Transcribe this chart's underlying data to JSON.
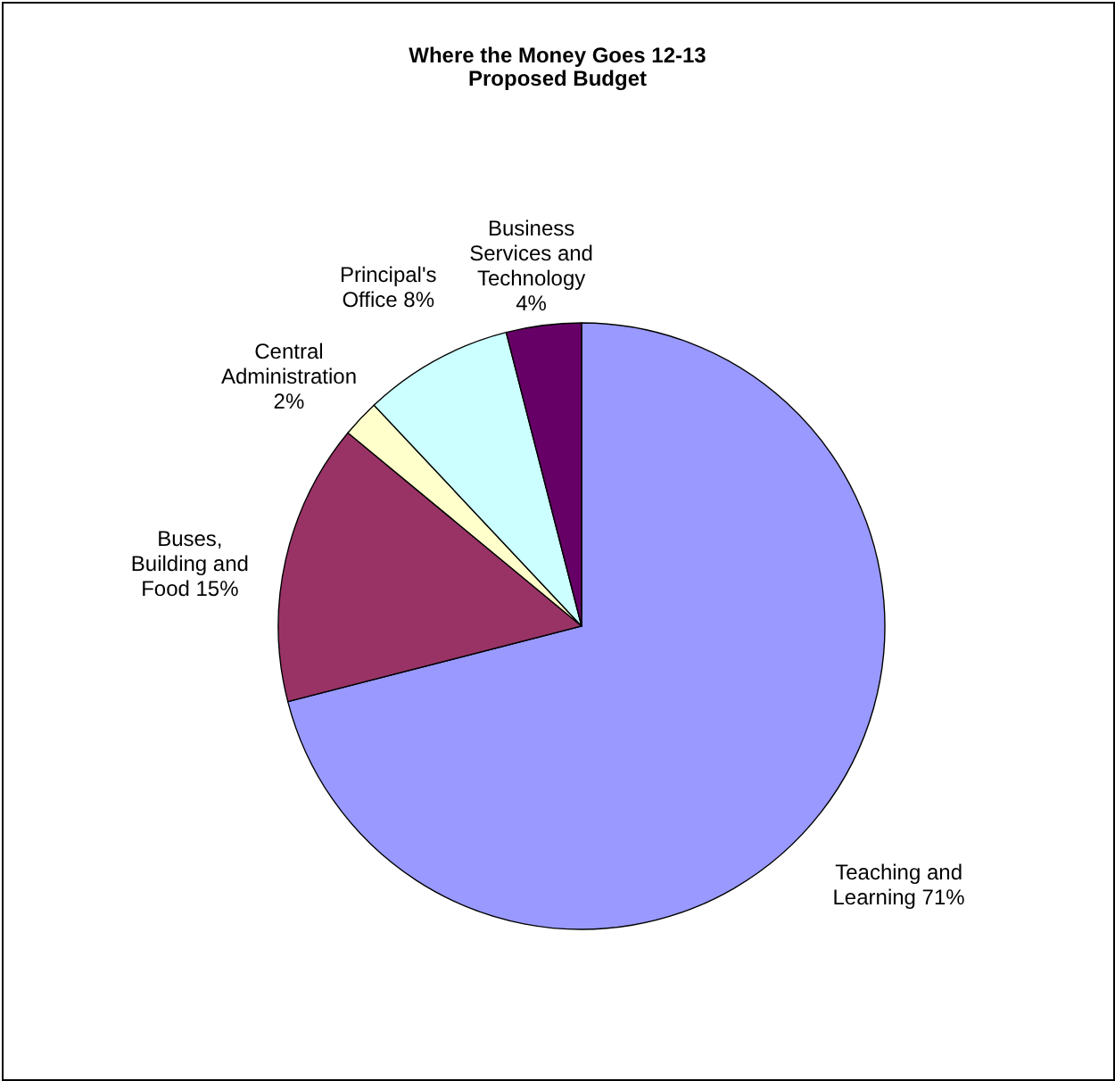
{
  "chart_data": {
    "type": "pie",
    "title": "Where the Money Goes 12-13",
    "subtitle": "Proposed Budget",
    "categories": [
      "Teaching and Learning",
      "Buses, Building and Food",
      "Central Administration",
      "Principal's Office",
      "Business Services and Technology"
    ],
    "values": [
      71,
      15,
      2,
      8,
      4
    ],
    "value_labels": [
      "71%",
      "15%",
      "2%",
      "8%",
      "4%"
    ],
    "colors": [
      "#9999ff",
      "#993366",
      "#ffffcc",
      "#ccffff",
      "#660066"
    ]
  }
}
